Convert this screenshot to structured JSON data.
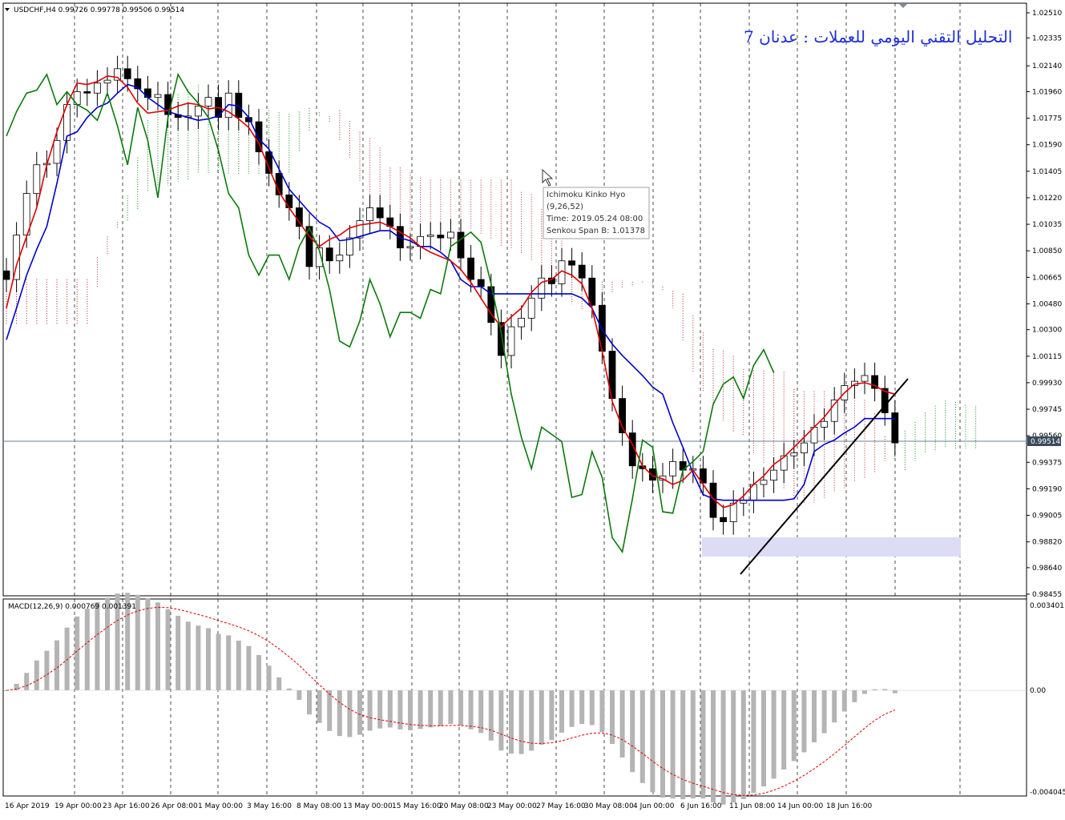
{
  "header": {
    "symbol_line": "USDCHF,H4  0.99726 0.99778 0.99506 0.99514",
    "arabic_title": "التحليل التقني اليومي للعملات : عدنان 7"
  },
  "tooltip": {
    "line1": "Ichimoku Kinko Hyo",
    "line2": "(9,26,52)",
    "line3": "Time: 2019.05.24 08:00",
    "line4": "Senkou Span B: 1.01378"
  },
  "price_labels": [
    "1.02510",
    "1.02335",
    "1.02140",
    "1.01960",
    "1.01775",
    "1.01590",
    "1.01405",
    "1.01220",
    "1.01035",
    "1.00850",
    "1.00665",
    "1.00480",
    "1.00300",
    "1.00115",
    "0.99930",
    "0.99745",
    "0.99560",
    "0.99375",
    "0.99190",
    "0.99005",
    "0.98820",
    "0.98640",
    "0.98455"
  ],
  "current_price": "0.99514",
  "macd": {
    "label": "MACD(12,26,9) 0.000769 0.001391",
    "scale_labels": [
      "0.003401",
      "0.00",
      "-0.004045"
    ]
  },
  "time_labels": [
    "16 Apr 2019",
    "19 Apr 00:00",
    "23 Apr 16:00",
    "26 Apr 08:00",
    "1 May 00:00",
    "3 May 16:00",
    "8 May 08:00",
    "13 May 00:00",
    "15 May 16:00",
    "20 May 08:00",
    "23 May 00:00",
    "27 May 16:00",
    "30 May 08:00",
    "4 Jun 00:00",
    "6 Jun 16:00",
    "11 Jun 08:00",
    "14 Jun 00:00",
    "18 Jun 16:00"
  ],
  "colors": {
    "tenkan": "#e00000",
    "kijun": "#0000cc",
    "chikou": "#0b7a0b",
    "kumo_bull": "#0b8a0b",
    "kumo_bear": "#c02020",
    "support_zone": "#dcdcf5",
    "macd_hist": "#b4b4b4",
    "macd_signal": "#e00000"
  },
  "chart_data": {
    "type": "candlestick",
    "symbol": "USDCHF",
    "timeframe": "H4",
    "ylim": [
      0.98455,
      1.0259
    ],
    "close": [
      1.0065,
      1.0096,
      1.0125,
      1.0145,
      1.0146,
      1.0162,
      1.0187,
      1.0196,
      1.0195,
      1.0202,
      1.0204,
      1.0212,
      1.0205,
      1.0198,
      1.0192,
      1.0194,
      1.018,
      1.0178,
      1.0179,
      1.0186,
      1.0192,
      1.0178,
      1.0195,
      1.0178,
      1.0175,
      1.0154,
      1.0139,
      1.0124,
      1.0115,
      1.0102,
      1.0074,
      1.0087,
      1.0078,
      1.0082,
      1.0094,
      1.0106,
      1.0115,
      1.0108,
      1.0102,
      1.0087,
      1.0088,
      1.0095,
      1.0096,
      1.0094,
      1.0098,
      1.008,
      1.0065,
      1.006,
      1.0035,
      1.0012,
      1.0032,
      1.0038,
      1.0052,
      1.0066,
      1.0062,
      1.0078,
      1.0075,
      1.0066,
      1.0047,
      1.0015,
      0.9982,
      0.9958,
      0.9935,
      0.9933,
      0.9925,
      0.9928,
      0.9938,
      0.9932,
      0.9933,
      0.9923,
      0.9899,
      0.9896,
      0.9909,
      0.9911,
      0.9922,
      0.9925,
      0.9932,
      0.9942,
      0.9944,
      0.9951,
      0.9962,
      0.9966,
      0.9981,
      0.9991,
      0.9994,
      0.9998,
      0.9989,
      0.9972,
      0.9951
    ],
    "tenkan": [
      1.0045,
      1.0075,
      1.0095,
      1.0115,
      1.0145,
      1.0168,
      1.0187,
      1.0202,
      1.0201,
      1.0203,
      1.0207,
      1.0206,
      1.0199,
      1.0188,
      1.0181,
      1.0182,
      1.0183,
      1.0186,
      1.0188,
      1.0187,
      1.0184,
      1.0185,
      1.0182,
      1.0177,
      1.0171,
      1.016,
      1.0143,
      1.0126,
      1.0115,
      1.0105,
      1.0095,
      1.0088,
      1.0093,
      1.0096,
      1.0101,
      1.0103,
      1.0104,
      1.0105,
      1.0102,
      1.0098,
      1.0094,
      1.0088,
      1.0084,
      1.0081,
      1.0078,
      1.0072,
      1.0063,
      1.0052,
      1.0041,
      1.0032,
      1.0039,
      1.0045,
      1.0056,
      1.0063,
      1.0065,
      1.0071,
      1.0068,
      1.0062,
      1.0045,
      1.0015,
      0.998,
      0.9962,
      0.995,
      0.9935,
      0.9928,
      0.9926,
      0.9922,
      0.9925,
      0.9932,
      0.9922,
      0.9912,
      0.9906,
      0.9908,
      0.9914,
      0.9922,
      0.9928,
      0.9936,
      0.9941,
      0.9948,
      0.9955,
      0.9962,
      0.9969,
      0.9978,
      0.9986,
      0.9992,
      0.9993,
      0.9991,
      0.9987,
      0.9985
    ],
    "kijun": [
      1.0023,
      1.0045,
      1.0068,
      1.0086,
      1.0102,
      1.0132,
      1.0165,
      1.0168,
      1.0178,
      1.0185,
      1.0188,
      1.0195,
      1.0201,
      1.0199,
      1.0192,
      1.0187,
      1.0182,
      1.018,
      1.0178,
      1.0176,
      1.0177,
      1.0179,
      1.0187,
      1.0186,
      1.0178,
      1.0163,
      1.0156,
      1.0142,
      1.0128,
      1.012,
      1.0112,
      1.0105,
      1.0101,
      1.0092,
      1.0093,
      1.0095,
      1.0097,
      1.0099,
      1.0099,
      1.0094,
      1.0092,
      1.0088,
      1.0088,
      1.0084,
      1.0078,
      1.0065,
      1.006,
      1.006,
      1.0055,
      1.0055,
      1.0055,
      1.0055,
      1.0055,
      1.0055,
      1.0055,
      1.0055,
      1.0055,
      1.0052,
      1.0045,
      1.003,
      1.002,
      1.0012,
      1.0005,
      0.9998,
      0.999,
      0.9985,
      0.9965,
      0.9948,
      0.993,
      0.9915,
      0.9912,
      0.9911,
      0.9911,
      0.9911,
      0.9911,
      0.9911,
      0.9911,
      0.9911,
      0.9912,
      0.9922,
      0.9945,
      0.995,
      0.9953,
      0.9958,
      0.9962,
      0.9968,
      0.9968,
      0.9968,
      0.9968
    ],
    "chikou": [
      1.0165,
      1.0182,
      1.0195,
      1.0197,
      1.0208,
      1.0187,
      1.0196,
      1.0187,
      1.0183,
      1.0176,
      1.0195,
      1.0172,
      1.0145,
      1.0185,
      1.0162,
      1.0122,
      1.0178,
      1.0208,
      1.0196,
      1.0188,
      1.0178,
      1.0155,
      1.0125,
      1.0115,
      1.0082,
      1.0068,
      1.0082,
      1.0082,
      1.0065,
      1.0088,
      1.0101,
      1.0085,
      1.0058,
      1.0022,
      1.0018,
      1.0036,
      1.0065,
      1.0048,
      1.0025,
      1.0042,
      1.0042,
      1.0038,
      1.0058,
      1.0055,
      1.0088,
      1.0093,
      1.0098,
      1.0091,
      1.0062,
      1.0028,
      0.9985,
      0.9955,
      0.9933,
      0.9962,
      0.9957,
      0.9952,
      0.9913,
      0.9915,
      0.9945,
      0.9927,
      0.9885,
      0.9875,
      0.9912,
      0.9953,
      0.9948,
      0.9903,
      0.9902,
      0.9932,
      0.9938,
      0.9945,
      0.9978,
      0.9992,
      0.9997,
      0.9982,
      1.0005,
      1.0016,
      1.0
    ]
  }
}
